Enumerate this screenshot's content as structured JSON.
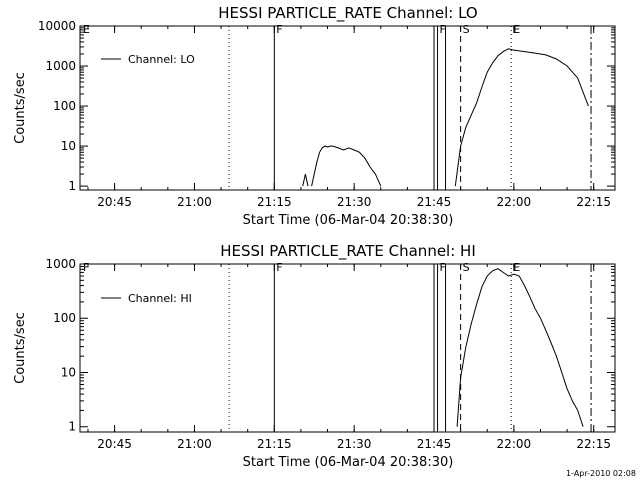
{
  "footer": {
    "timestamp": "1-Apr-2010 02:08"
  },
  "chart_data": [
    {
      "type": "line",
      "title": "HESSI PARTICLE_RATE Channel: LO",
      "xlabel": "Start Time (06-Mar-04 20:38:30)",
      "ylabel": "Counts/sec",
      "y_scale": "log",
      "ylim": [
        0.8,
        10000
      ],
      "xlim": [
        "20:38:30",
        "22:19:00"
      ],
      "x_ticks": [
        "20:45",
        "21:00",
        "21:15",
        "21:30",
        "21:45",
        "22:00",
        "22:15"
      ],
      "y_ticks": [
        "1",
        "10",
        "100",
        "1000",
        "10000"
      ],
      "legend": {
        "position": "top-left",
        "entries": [
          "Channel: LO"
        ]
      },
      "series": [
        {
          "name": "Channel: LO",
          "segments": [
            {
              "x": [
                "21:20:20",
                "21:20:50",
                "21:21:20"
              ],
              "y": [
                1.0,
                2.0,
                1.0
              ]
            },
            {
              "x": [
                "21:22:00",
                "21:22:30",
                "21:23:00",
                "21:23:30",
                "21:24:00",
                "21:24:30",
                "21:25:00",
                "21:25:30",
                "21:26:00",
                "21:27:00",
                "21:28:00",
                "21:29:00",
                "21:30:00",
                "21:31:00",
                "21:32:00",
                "21:33:00",
                "21:34:00",
                "21:35:00"
              ],
              "y": [
                1.0,
                2.0,
                4.0,
                7.0,
                9.0,
                10.0,
                9.5,
                10.0,
                10.0,
                9.0,
                8.0,
                9.0,
                8.0,
                7.0,
                5.0,
                3.0,
                2.0,
                1.0
              ]
            },
            {
              "x": [
                "21:49:00",
                "21:50:00",
                "21:51:00",
                "21:52:00",
                "21:53:00",
                "21:54:00",
                "21:55:00",
                "21:56:00",
                "21:57:00",
                "21:58:00",
                "21:59:00",
                "22:00:00",
                "22:02:00",
                "22:04:00",
                "22:06:00",
                "22:08:00",
                "22:10:00",
                "22:12:00",
                "22:14:00"
              ],
              "y": [
                1.0,
                10.0,
                30.0,
                60.0,
                120.0,
                300.0,
                700.0,
                1200.0,
                1800.0,
                2300.0,
                2700.0,
                2500.0,
                2300.0,
                2100.0,
                1900.0,
                1500.0,
                1000.0,
                500.0,
                100.0
              ]
            }
          ]
        }
      ],
      "vertical_lines": [
        {
          "x": "21:06:30",
          "style": "dotted",
          "label": ""
        },
        {
          "x": "21:15:00",
          "style": "solid",
          "label": "F"
        },
        {
          "x": "21:45:00",
          "style": "solid",
          "label": ""
        },
        {
          "x": "21:45:40",
          "style": "solid",
          "label": "F"
        },
        {
          "x": "21:47:10",
          "style": "solid",
          "label": ""
        },
        {
          "x": "21:50:00",
          "style": "dashed",
          "label": "S"
        },
        {
          "x": "21:59:30",
          "style": "dotted",
          "label": "E"
        },
        {
          "x": "22:14:30",
          "style": "dashdot",
          "label": ""
        }
      ],
      "corner_label": "E"
    },
    {
      "type": "line",
      "title": "HESSI PARTICLE_RATE Channel: HI",
      "xlabel": "Start Time (06-Mar-04 20:38:30)",
      "ylabel": "Counts/sec",
      "y_scale": "log",
      "ylim": [
        0.8,
        1000
      ],
      "xlim": [
        "20:38:30",
        "22:19:00"
      ],
      "x_ticks": [
        "20:45",
        "21:00",
        "21:15",
        "21:30",
        "21:45",
        "22:00",
        "22:15"
      ],
      "y_ticks": [
        "1",
        "10",
        "100",
        "1000"
      ],
      "legend": {
        "position": "top-left",
        "entries": [
          "Channel: HI"
        ]
      },
      "series": [
        {
          "name": "Channel: HI",
          "segments": [
            {
              "x": [
                "21:49:20",
                "21:50:00",
                "21:51:00",
                "21:52:00",
                "21:53:00",
                "21:54:00",
                "21:55:00",
                "21:56:00",
                "21:57:00",
                "21:58:00",
                "21:59:00",
                "22:00:00",
                "22:01:00",
                "22:02:00",
                "22:03:00",
                "22:04:00",
                "22:05:00",
                "22:06:00",
                "22:07:00",
                "22:08:00",
                "22:09:00",
                "22:10:00",
                "22:11:00",
                "22:12:00",
                "22:13:00"
              ],
              "y": [
                1.0,
                8.0,
                30.0,
                80.0,
                180.0,
                380.0,
                600.0,
                750.0,
                820.0,
                700.0,
                600.0,
                650.0,
                600.0,
                400.0,
                250.0,
                150.0,
                100.0,
                60.0,
                35.0,
                20.0,
                10.0,
                5.0,
                3.0,
                2.0,
                1.0
              ]
            }
          ]
        }
      ],
      "vertical_lines": [
        {
          "x": "21:06:30",
          "style": "dotted",
          "label": ""
        },
        {
          "x": "21:15:00",
          "style": "solid",
          "label": "F"
        },
        {
          "x": "21:45:00",
          "style": "solid",
          "label": ""
        },
        {
          "x": "21:45:40",
          "style": "solid",
          "label": "F"
        },
        {
          "x": "21:47:10",
          "style": "solid",
          "label": ""
        },
        {
          "x": "21:50:00",
          "style": "dashed",
          "label": "S"
        },
        {
          "x": "21:59:30",
          "style": "dotted",
          "label": "E"
        },
        {
          "x": "22:14:30",
          "style": "dashdot",
          "label": ""
        }
      ],
      "corner_label": "F"
    }
  ]
}
